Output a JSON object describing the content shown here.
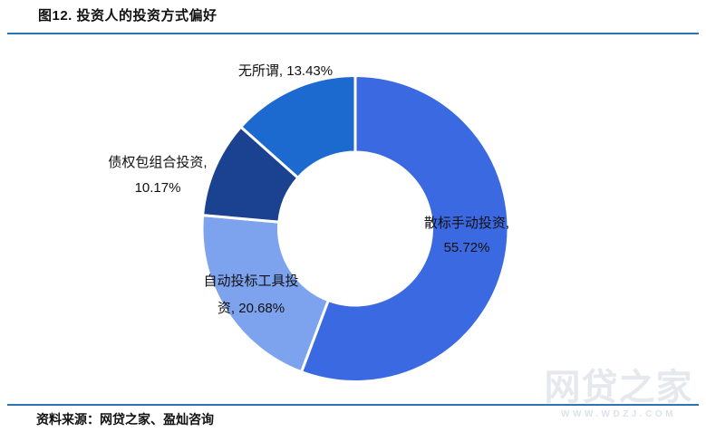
{
  "title": "图12. 投资人的投资方式偏好",
  "source": "资料来源：网贷之家、盈灿咨询",
  "watermark": {
    "brand": "网贷之家",
    "url": "WWW.WDZJ.COM"
  },
  "rule_color": "#2E74B5",
  "chart_data": {
    "type": "pie",
    "subtype": "donut",
    "title": "图12. 投资人的投资方式偏好",
    "categories": [
      "散标手动投资",
      "自动投标工具投资",
      "债权包组合投资",
      "无所谓"
    ],
    "values": [
      55.72,
      20.68,
      10.17,
      13.43
    ],
    "colors": [
      "#3B69E1",
      "#7DA3EF",
      "#1A4291",
      "#1C69CF"
    ],
    "start_angle_deg": 0,
    "direction": "clockwise",
    "donut_hole_ratio": 0.5,
    "slice_border_color": "#FFFFFF",
    "legend": "none",
    "labels": {
      "manual": [
        "散标手动投资,",
        "55.72%"
      ],
      "auto": [
        "自动投标工具投",
        "资, 20.68%"
      ],
      "package": [
        "债权包组合投资,",
        "10.17%"
      ],
      "whatever": [
        "无所谓, 13.43%"
      ]
    }
  }
}
